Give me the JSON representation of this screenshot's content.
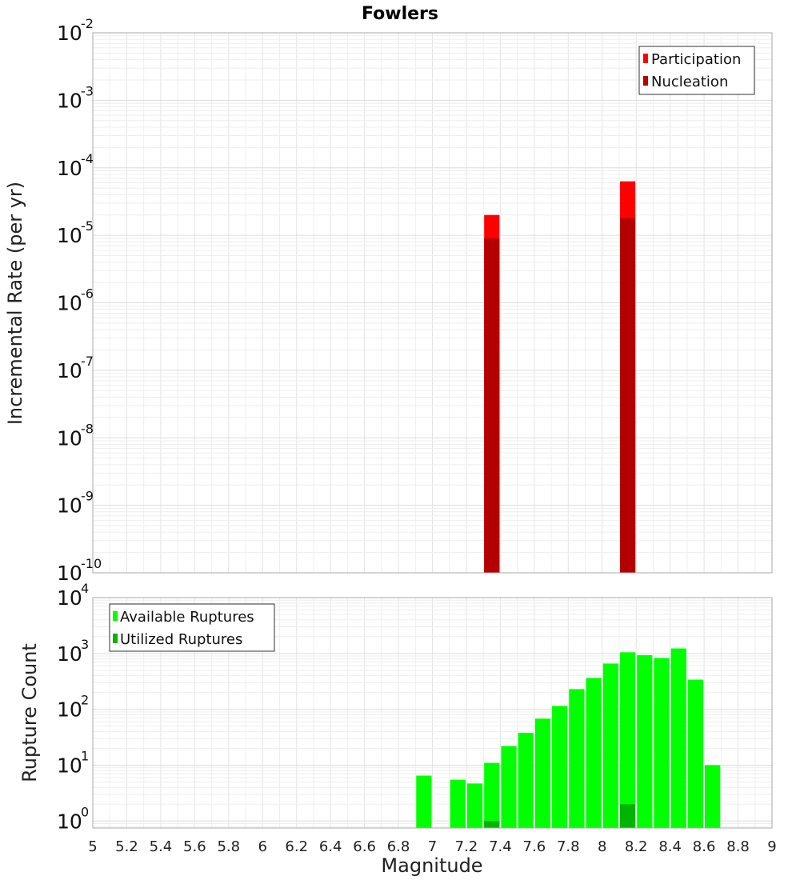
{
  "chart_data": [
    {
      "type": "bar",
      "title": "Fowlers",
      "xlabel": "",
      "ylabel": "Incremental Rate (per yr)",
      "yscale": "log",
      "xlim": [
        5,
        9
      ],
      "ylim": [
        1e-10,
        0.01
      ],
      "bin_width": 0.1,
      "grid": true,
      "legend_position": "top-right",
      "x_ticks": [
        "5",
        "5.2",
        "5.4",
        "5.6",
        "5.8",
        "6",
        "6.2",
        "6.4",
        "6.6",
        "6.8",
        "7",
        "7.2",
        "7.4",
        "7.6",
        "7.8",
        "8",
        "8.2",
        "8.4",
        "8.6",
        "8.8",
        "9"
      ],
      "y_ticks": [
        {
          "base": "10",
          "exp": "-10",
          "value": 1e-10
        },
        {
          "base": "10",
          "exp": "-9",
          "value": 1e-09
        },
        {
          "base": "10",
          "exp": "-8",
          "value": 1e-08
        },
        {
          "base": "10",
          "exp": "-7",
          "value": 1e-07
        },
        {
          "base": "10",
          "exp": "-6",
          "value": 1e-06
        },
        {
          "base": "10",
          "exp": "-5",
          "value": 1e-05
        },
        {
          "base": "10",
          "exp": "-4",
          "value": 0.0001
        },
        {
          "base": "10",
          "exp": "-3",
          "value": 0.001
        },
        {
          "base": "10",
          "exp": "-2",
          "value": 0.01
        }
      ],
      "series": [
        {
          "name": "Participation",
          "color": "#ff0000",
          "x": [
            7.35,
            8.15
          ],
          "values": [
            2e-05,
            6.3e-05
          ]
        },
        {
          "name": "Nucleation",
          "color": "#b40000",
          "x": [
            7.35,
            8.15
          ],
          "values": [
            9e-06,
            1.8e-05
          ]
        }
      ]
    },
    {
      "type": "bar",
      "title": "",
      "xlabel": "Magnitude",
      "ylabel": "Rupture Count",
      "yscale": "log",
      "xlim": [
        5,
        9
      ],
      "ylim": [
        0.75,
        10000
      ],
      "bin_width": 0.1,
      "grid": true,
      "legend_position": "top-left",
      "x_ticks": [
        "5",
        "5.2",
        "5.4",
        "5.6",
        "5.8",
        "6",
        "6.2",
        "6.4",
        "6.6",
        "6.8",
        "7",
        "7.2",
        "7.4",
        "7.6",
        "7.8",
        "8",
        "8.2",
        "8.4",
        "8.6",
        "8.8",
        "9"
      ],
      "y_ticks": [
        {
          "base": "10",
          "exp": "0",
          "value": 1
        },
        {
          "base": "10",
          "exp": "1",
          "value": 10
        },
        {
          "base": "10",
          "exp": "2",
          "value": 100
        },
        {
          "base": "10",
          "exp": "3",
          "value": 1000
        },
        {
          "base": "10",
          "exp": "4",
          "value": 10000
        }
      ],
      "series": [
        {
          "name": "Available Ruptures",
          "color": "#00ff00",
          "x": [
            6.95,
            7.15,
            7.25,
            7.35,
            7.45,
            7.55,
            7.65,
            7.75,
            7.85,
            7.95,
            8.05,
            8.15,
            8.25,
            8.35,
            8.45,
            8.55,
            8.65
          ],
          "values": [
            6.5,
            5.5,
            4.7,
            11,
            22,
            38,
            68,
            115,
            230,
            365,
            660,
            1050,
            930,
            830,
            1230,
            340,
            10
          ]
        },
        {
          "name": "Utilized Ruptures",
          "color": "#00b400",
          "x": [
            7.35,
            8.15
          ],
          "values": [
            1,
            2
          ]
        }
      ]
    }
  ]
}
